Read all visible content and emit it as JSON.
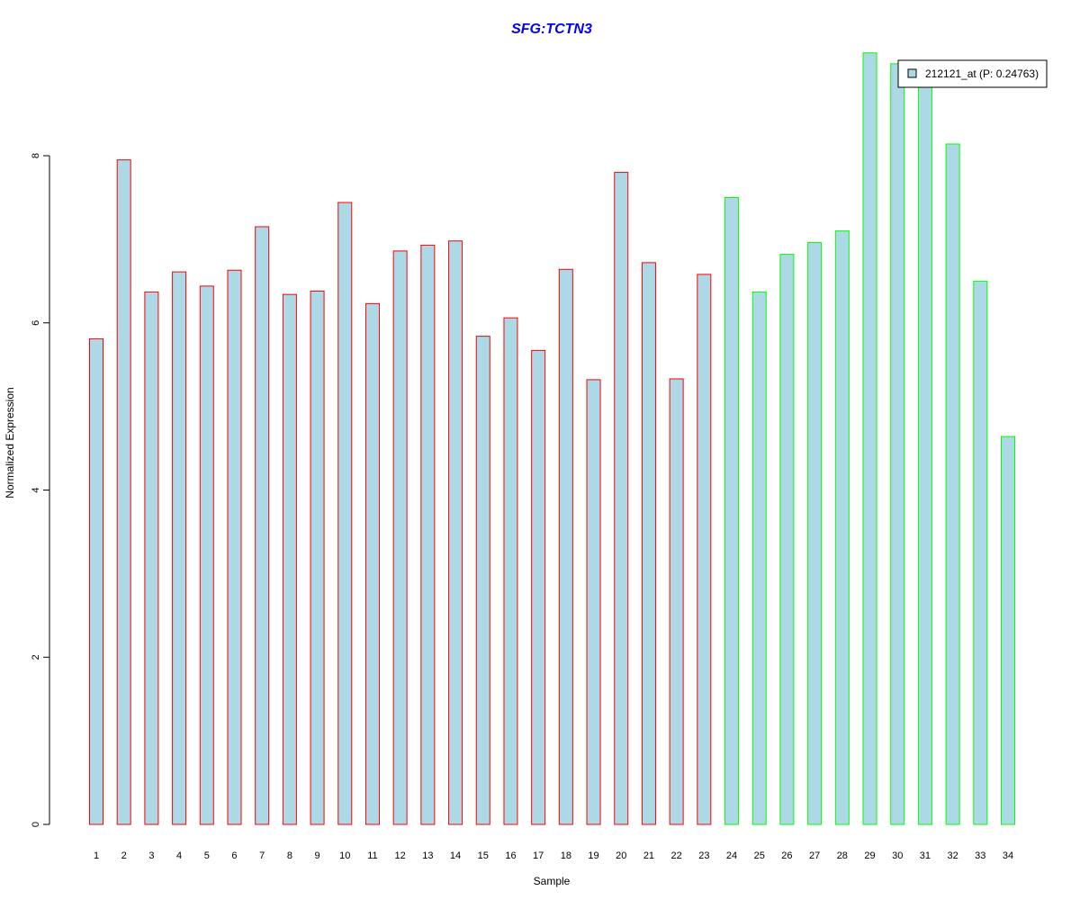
{
  "chart_data": {
    "type": "bar",
    "title": "SFG:TCTN3",
    "xlabel": "Sample",
    "ylabel": "Normalized Expression",
    "ylim": [
      0,
      9.3
    ],
    "yticks": [
      0,
      2,
      4,
      6,
      8
    ],
    "categories": [
      "1",
      "2",
      "3",
      "4",
      "5",
      "6",
      "7",
      "8",
      "9",
      "10",
      "11",
      "12",
      "13",
      "14",
      "15",
      "16",
      "17",
      "18",
      "19",
      "20",
      "21",
      "22",
      "23",
      "24",
      "25",
      "26",
      "27",
      "28",
      "29",
      "30",
      "31",
      "32",
      "33",
      "34"
    ],
    "values": [
      5.81,
      7.95,
      6.37,
      6.61,
      6.44,
      6.63,
      7.15,
      6.34,
      6.38,
      7.44,
      6.23,
      6.86,
      6.93,
      6.98,
      5.84,
      6.06,
      5.67,
      6.64,
      5.32,
      7.8,
      6.72,
      5.33,
      6.58,
      7.5,
      6.37,
      6.82,
      6.96,
      7.1,
      9.23,
      9.1,
      8.9,
      8.14,
      6.5,
      4.64
    ],
    "groups": [
      "red",
      "red",
      "red",
      "red",
      "red",
      "red",
      "red",
      "red",
      "red",
      "red",
      "red",
      "red",
      "red",
      "red",
      "red",
      "red",
      "red",
      "red",
      "red",
      "red",
      "red",
      "red",
      "red",
      "green",
      "green",
      "green",
      "green",
      "green",
      "green",
      "green",
      "green",
      "green",
      "green",
      "green"
    ],
    "fill_color": "#add8e6",
    "border_colors": {
      "red": "#ff0000",
      "green": "#00ff00"
    },
    "title_color": "#0000ff",
    "legend": {
      "entries": [
        "212121_at (P: 0.24763)"
      ],
      "placement": "top-right"
    }
  }
}
